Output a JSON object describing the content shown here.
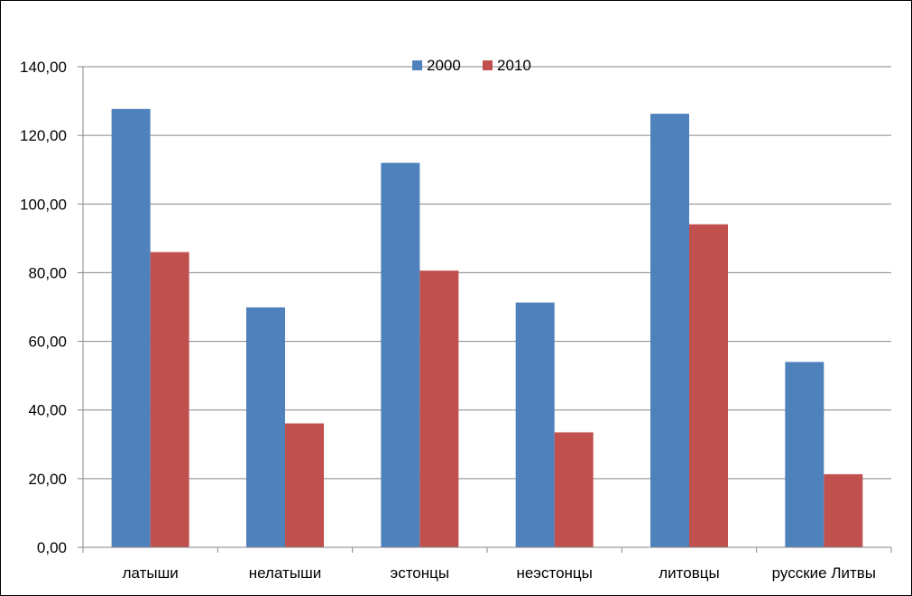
{
  "chart_data": {
    "type": "bar",
    "categories": [
      "латыши",
      "нелатыши",
      "эстонцы",
      "неэстонцы",
      "литовцы",
      "русские Литвы"
    ],
    "series": [
      {
        "name": "2000",
        "color": "#4F81BD",
        "values": [
          127.7,
          69.9,
          112.0,
          71.3,
          126.3,
          54.0
        ]
      },
      {
        "name": "2010",
        "color": "#C0504D",
        "values": [
          86.0,
          36.1,
          80.6,
          33.5,
          94.1,
          21.3
        ]
      }
    ],
    "yticks": [
      "0,00",
      "20,00",
      "40,00",
      "60,00",
      "80,00",
      "100,00",
      "120,00",
      "140,00"
    ],
    "ylim": [
      0,
      140
    ],
    "grid": true,
    "legend_position": "top-center"
  }
}
